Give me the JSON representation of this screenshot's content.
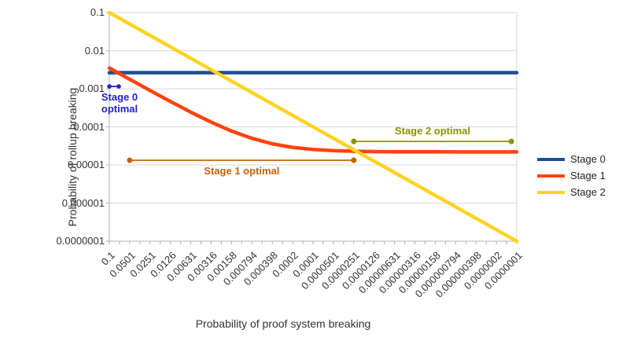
{
  "chart_data": {
    "type": "line",
    "title": "",
    "xlabel": "Probability of proof system breaking",
    "ylabel": "Probability of rollup breaking",
    "x_scale": "log",
    "y_scale": "log",
    "x_axis_reversed": true,
    "xlim": [
      0.1,
      1e-07
    ],
    "ylim": [
      1e-07,
      0.1
    ],
    "grid": true,
    "x_tick_labels": [
      "0.1",
      "0.0501",
      "0.0251",
      "0.0126",
      "0.00631",
      "0.00316",
      "0.00158",
      "0.000794",
      "0.000398",
      "0.0002",
      "0.0001",
      "0.0000501",
      "0.0000251",
      "0.0000126",
      "0.00000631",
      "0.00000316",
      "0.00000158",
      "0.000000794",
      "0.000000398",
      "0.0000002",
      "0.0000001"
    ],
    "y_tick_labels": [
      "0.1",
      "0.01",
      "0.001",
      "0.0001",
      "0.00001",
      "0.000001",
      "0.0000001"
    ],
    "series": [
      {
        "name": "Stage 0",
        "color": "#1b4f90",
        "x": [
          0.1,
          1e-07
        ],
        "y": [
          0.00265,
          0.00265
        ]
      },
      {
        "name": "Stage 1",
        "color": "#ff420e",
        "x": [
          0.1,
          0.0501,
          0.0251,
          0.0126,
          0.00631,
          0.00316,
          0.00158,
          0.000794,
          0.000398,
          0.0002,
          0.0001,
          5.01e-05,
          2.51e-05,
          1.26e-05,
          6.31e-06,
          3.16e-06,
          1.58e-06,
          7.94e-07,
          3.98e-07,
          2e-07,
          1e-07
        ],
        "y": [
          0.0035,
          0.00178,
          0.0009,
          0.000463,
          0.000243,
          0.000133,
          7.73e-05,
          5e-05,
          3.59e-05,
          2.9e-05,
          2.55e-05,
          2.38e-05,
          2.29e-05,
          2.24e-05,
          2.22e-05,
          2.21e-05,
          2.21e-05,
          2.2e-05,
          2.2e-05,
          2.2e-05,
          2.2e-05
        ]
      },
      {
        "name": "Stage 2",
        "color": "#ffd320",
        "x": [
          0.1,
          1e-07
        ],
        "y": [
          0.1,
          1e-07
        ]
      }
    ],
    "annotations": [
      {
        "id": "stage0-optimal",
        "label_lines": [
          "Stage 0",
          "optimal"
        ],
        "color": "#2222cc",
        "x_start": 0.1,
        "x_end": 0.0726,
        "y": 0.00115,
        "label_position": "below"
      },
      {
        "id": "stage1-optimal",
        "label_lines": [
          "Stage 1 optimal"
        ],
        "color": "#c4620c",
        "x_start": 0.0501,
        "x_end": 2.51e-05,
        "y": 1.33e-05,
        "label_position": "below"
      },
      {
        "id": "stage2-optimal",
        "label_lines": [
          "Stage 2 optimal"
        ],
        "color": "#8e9000",
        "x_start": 2.51e-05,
        "x_end": 1.2e-07,
        "y": 4.16e-05,
        "label_position": "above"
      }
    ],
    "legend": {
      "position": "right",
      "entries": [
        {
          "label": "Stage 0",
          "color": "#1b4f90"
        },
        {
          "label": "Stage 1",
          "color": "#ff420e"
        },
        {
          "label": "Stage 2",
          "color": "#ffd320"
        }
      ]
    }
  }
}
